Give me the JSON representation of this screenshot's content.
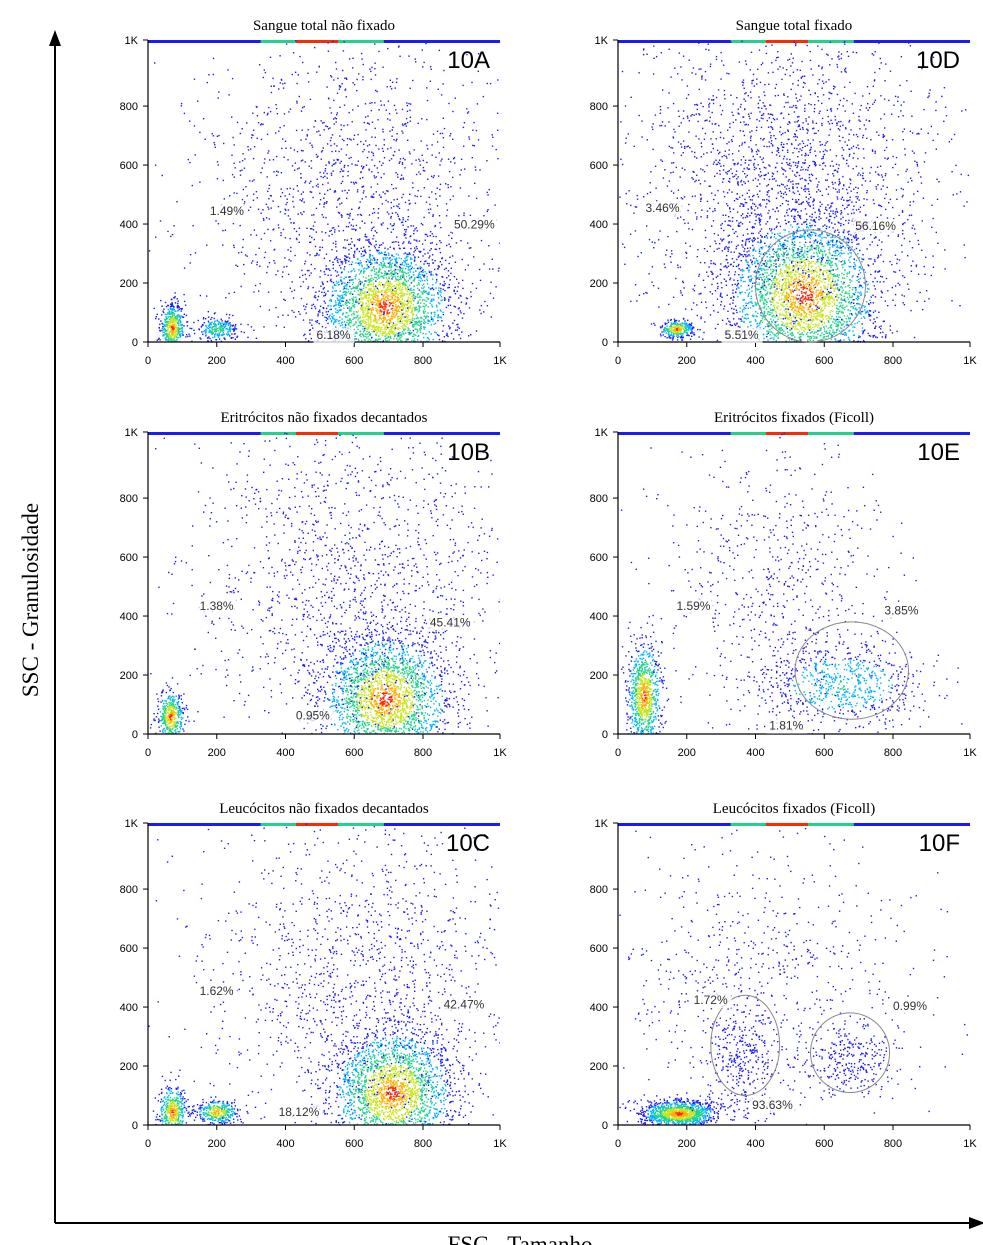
{
  "figure": {
    "x_axis_title": "FSC - Tamanho",
    "y_axis_title": "SSC - Granulosidade"
  },
  "chart_data": [
    {
      "id": "10A",
      "type": "scatter",
      "title": "Sangue total não fixado",
      "xlim": [
        0,
        1024
      ],
      "ylim": [
        0,
        1024
      ],
      "x_ticks": [
        "0",
        "200",
        "400",
        "600",
        "800",
        "1K"
      ],
      "y_ticks": [
        "0",
        "200",
        "400",
        "600",
        "800",
        "1K"
      ],
      "clusters": [
        {
          "x": 690,
          "y": 120,
          "sx": 95,
          "sy": 110,
          "n": 2600,
          "peak": 1.0
        },
        {
          "x": 70,
          "y": 50,
          "sx": 18,
          "sy": 40,
          "n": 500,
          "peak": 1.0
        },
        {
          "x": 200,
          "y": 45,
          "sx": 30,
          "sy": 20,
          "n": 250,
          "peak": 0.6
        },
        {
          "x": 600,
          "y": 500,
          "sx": 230,
          "sy": 280,
          "n": 1500,
          "peak": 0.0
        }
      ],
      "gates": [
        {
          "label": "1.49%",
          "x": 180,
          "y": 430,
          "ring": null
        },
        {
          "label": "50.29%",
          "x": 890,
          "y": 385,
          "ring": null
        },
        {
          "label": "6.18%",
          "x": 490,
          "y": 10,
          "ring": null
        }
      ]
    },
    {
      "id": "10D",
      "type": "scatter",
      "title": "Sangue total fixado",
      "xlim": [
        0,
        1024
      ],
      "ylim": [
        0,
        1024
      ],
      "x_ticks": [
        "0",
        "200",
        "400",
        "600",
        "800",
        "1K"
      ],
      "y_ticks": [
        "0",
        "200",
        "400",
        "600",
        "800",
        "1K"
      ],
      "clusters": [
        {
          "x": 540,
          "y": 160,
          "sx": 110,
          "sy": 140,
          "n": 3000,
          "peak": 1.0
        },
        {
          "x": 170,
          "y": 45,
          "sx": 25,
          "sy": 15,
          "n": 300,
          "peak": 1.0
        },
        {
          "x": 500,
          "y": 560,
          "sx": 220,
          "sy": 290,
          "n": 2200,
          "peak": 0.0
        }
      ],
      "gates": [
        {
          "label": "3.46%",
          "x": 80,
          "y": 440,
          "ring": null
        },
        {
          "label": "56.16%",
          "x": 690,
          "y": 380,
          "ring": {
            "cx": 560,
            "cy": 190,
            "rx": 160,
            "ry": 190
          }
        },
        {
          "label": "5.51%",
          "x": 310,
          "y": 10,
          "ring": null
        }
      ]
    },
    {
      "id": "10B",
      "type": "scatter",
      "title": "Eritrócitos não fixados decantados",
      "xlim": [
        0,
        1024
      ],
      "ylim": [
        0,
        1024
      ],
      "x_ticks": [
        "0",
        "200",
        "400",
        "600",
        "800",
        "1K"
      ],
      "y_ticks": [
        "0",
        "200",
        "400",
        "600",
        "800",
        "1K"
      ],
      "clusters": [
        {
          "x": 690,
          "y": 120,
          "sx": 95,
          "sy": 110,
          "n": 2400,
          "peak": 1.0
        },
        {
          "x": 65,
          "y": 60,
          "sx": 20,
          "sy": 45,
          "n": 450,
          "peak": 1.0
        },
        {
          "x": 600,
          "y": 520,
          "sx": 230,
          "sy": 280,
          "n": 1500,
          "peak": 0.0
        }
      ],
      "gates": [
        {
          "label": "1.38%",
          "x": 150,
          "y": 420,
          "ring": null
        },
        {
          "label": "45.41%",
          "x": 820,
          "y": 365,
          "ring": null
        },
        {
          "label": "0.95%",
          "x": 430,
          "y": 50,
          "ring": null
        }
      ]
    },
    {
      "id": "10E",
      "type": "scatter",
      "title": "Eritrócitos fixados (Ficoll)",
      "xlim": [
        0,
        1024
      ],
      "ylim": [
        0,
        1024
      ],
      "x_ticks": [
        "0",
        "200",
        "400",
        "600",
        "800",
        "1K"
      ],
      "y_ticks": [
        "0",
        "200",
        "400",
        "600",
        "800",
        "1K"
      ],
      "clusters": [
        {
          "x": 75,
          "y": 130,
          "sx": 25,
          "sy": 90,
          "n": 900,
          "peak": 1.0
        },
        {
          "x": 650,
          "y": 170,
          "sx": 120,
          "sy": 70,
          "n": 700,
          "peak": 0.45
        },
        {
          "x": 450,
          "y": 500,
          "sx": 160,
          "sy": 270,
          "n": 700,
          "peak": 0.0
        }
      ],
      "gates": [
        {
          "label": "1.59%",
          "x": 170,
          "y": 420,
          "ring": null
        },
        {
          "label": "3.85%",
          "x": 775,
          "y": 405,
          "ring": {
            "cx": 680,
            "cy": 215,
            "rx": 165,
            "ry": 165
          }
        },
        {
          "label": "1.81%",
          "x": 440,
          "y": 15,
          "ring": null
        }
      ]
    },
    {
      "id": "10C",
      "type": "scatter",
      "title": "Leucócitos não fixados decantados",
      "xlim": [
        0,
        1024
      ],
      "ylim": [
        0,
        1024
      ],
      "x_ticks": [
        "0",
        "200",
        "400",
        "600",
        "800",
        "1K"
      ],
      "y_ticks": [
        "0",
        "200",
        "400",
        "600",
        "800",
        "1K"
      ],
      "clusters": [
        {
          "x": 710,
          "y": 110,
          "sx": 90,
          "sy": 110,
          "n": 2300,
          "peak": 1.0
        },
        {
          "x": 70,
          "y": 45,
          "sx": 20,
          "sy": 45,
          "n": 450,
          "peak": 1.0
        },
        {
          "x": 200,
          "y": 45,
          "sx": 30,
          "sy": 20,
          "n": 350,
          "peak": 0.95
        },
        {
          "x": 620,
          "y": 520,
          "sx": 230,
          "sy": 280,
          "n": 1400,
          "peak": 0.0
        }
      ],
      "gates": [
        {
          "label": "1.62%",
          "x": 150,
          "y": 440,
          "ring": null
        },
        {
          "label": "42.47%",
          "x": 860,
          "y": 395,
          "ring": null
        },
        {
          "label": "18.12%",
          "x": 380,
          "y": 30,
          "ring": null
        }
      ]
    },
    {
      "id": "10F",
      "type": "scatter",
      "title": "Leucócitos fixados (Ficoll)",
      "xlim": [
        0,
        1024
      ],
      "ylim": [
        0,
        1024
      ],
      "x_ticks": [
        "0",
        "200",
        "400",
        "600",
        "800",
        "1K"
      ],
      "y_ticks": [
        "0",
        "200",
        "400",
        "600",
        "800",
        "1K"
      ],
      "clusters": [
        {
          "x": 175,
          "y": 40,
          "sx": 55,
          "sy": 22,
          "n": 1200,
          "peak": 1.0
        },
        {
          "x": 360,
          "y": 200,
          "sx": 50,
          "sy": 120,
          "n": 350,
          "peak": 0.15
        },
        {
          "x": 670,
          "y": 220,
          "sx": 70,
          "sy": 60,
          "n": 260,
          "peak": 0.12
        },
        {
          "x": 430,
          "y": 500,
          "sx": 230,
          "sy": 260,
          "n": 700,
          "peak": 0.0
        }
      ],
      "gates": [
        {
          "label": "1.72%",
          "x": 220,
          "y": 410,
          "ring": {
            "cx": 370,
            "cy": 270,
            "rx": 100,
            "ry": 170
          }
        },
        {
          "label": "0.99%",
          "x": 800,
          "y": 390,
          "ring": {
            "cx": 675,
            "cy": 245,
            "rx": 115,
            "ry": 135
          }
        },
        {
          "label": "93.63%",
          "x": 390,
          "y": 55,
          "ring": null
        }
      ]
    }
  ]
}
